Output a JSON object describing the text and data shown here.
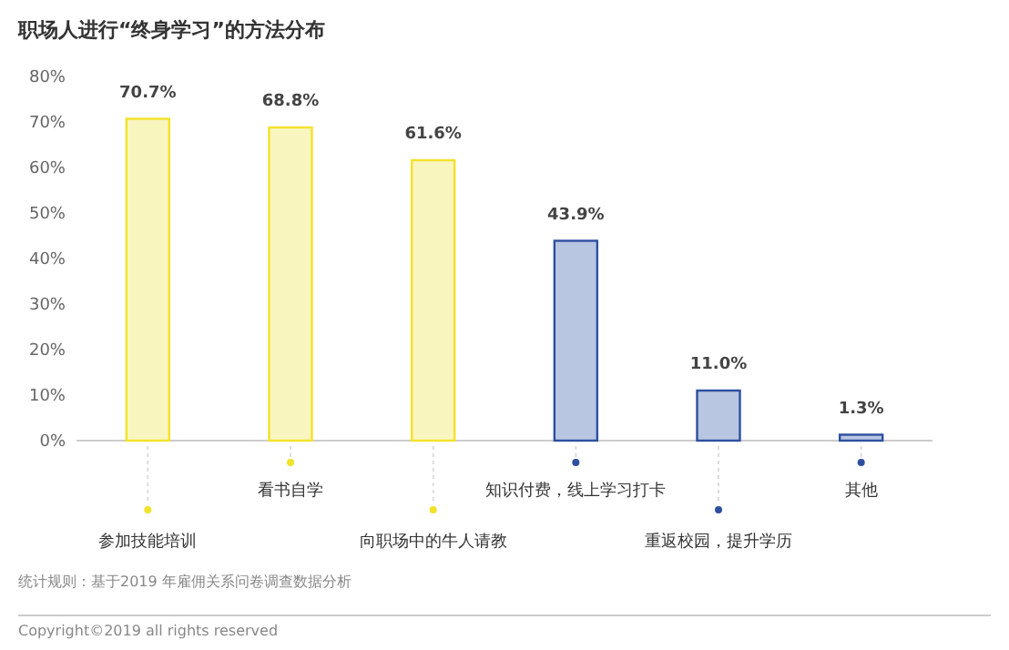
{
  "chart_data": {
    "type": "bar",
    "title": "职场人进行“终身学习”的方法分布",
    "categories": [
      "参加技能培训",
      "看书自学",
      "向职场中的牛人请教",
      "知识付费，线上学习打卡",
      "重返校园，提升学历",
      "其他"
    ],
    "values": [
      70.7,
      68.8,
      61.6,
      43.9,
      11.0,
      1.3
    ],
    "value_labels": [
      "70.7%",
      "68.8%",
      "61.6%",
      "43.9%",
      "11.0%",
      "1.3%"
    ],
    "colors": [
      "#f9f5bf",
      "#f9f5bf",
      "#f9f5bf",
      "#b8c6e2",
      "#b8c6e2",
      "#b8c6e2"
    ],
    "ylim": [
      0,
      80
    ],
    "yticks": [
      {
        "value": 0,
        "label": "0%"
      },
      {
        "value": 10,
        "label": "10%"
      },
      {
        "value": 20,
        "label": "20%"
      },
      {
        "value": 30,
        "label": "30%"
      },
      {
        "value": 40,
        "label": "40%"
      },
      {
        "value": 50,
        "label": "50%"
      },
      {
        "value": 60,
        "label": "60%"
      },
      {
        "value": 70,
        "label": "70%"
      },
      {
        "value": 80,
        "label": "80%"
      }
    ],
    "annotations": [
      "统计规则：基于2019 年雇佣关系问卷调查数据分析",
      "Copyright©2019 all rights reserved"
    ]
  }
}
